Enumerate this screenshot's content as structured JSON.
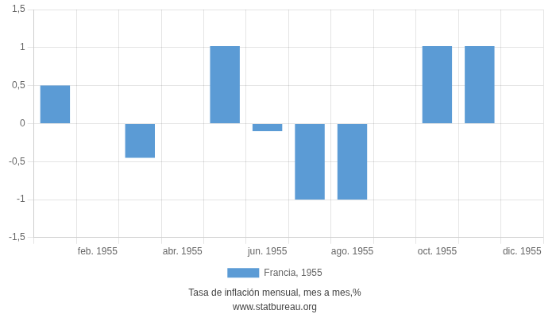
{
  "chart_data": {
    "type": "bar",
    "subtitle": "Tasa de inflación mensual, mes a mes,%",
    "annotations": [
      "www.statbureau.org"
    ],
    "categories": [
      null,
      "feb. 1955",
      null,
      "abr. 1955",
      null,
      "jun. 1955",
      null,
      "ago. 1955",
      null,
      "oct. 1955",
      null,
      "dic. 1955"
    ],
    "series": [
      {
        "name": "Francia, 1955",
        "color": "#5b9bd5",
        "values": [
          0.5,
          0.0,
          -0.45,
          0.0,
          1.02,
          -0.1,
          -1.0,
          -1.0,
          0.0,
          1.02,
          1.02,
          0.0
        ]
      }
    ],
    "ylim": [
      -1.5,
      1.5
    ],
    "yticks": [
      {
        "value": -1.5,
        "label": "-1,5"
      },
      -1,
      {
        "value": -0.5,
        "label": "-0,5"
      },
      0,
      {
        "value": 0.5,
        "label": "0,5"
      },
      1,
      {
        "value": 1.5,
        "label": "1,5"
      }
    ],
    "grid": true,
    "legend": "bottom"
  }
}
